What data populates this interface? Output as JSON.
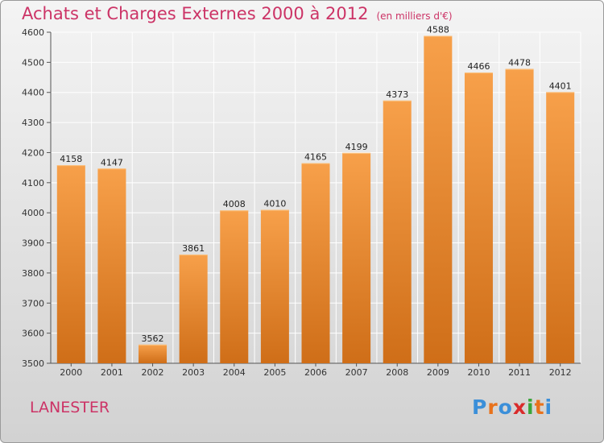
{
  "title": "Achats et Charges Externes 2000 à 2012",
  "unit": "(en milliers d'€)",
  "location": "LANESTER",
  "logo": {
    "text": "Proxiti",
    "colors": [
      "#3b8fd9",
      "#e8721c",
      "#3b8fd9",
      "#d92b2b",
      "#3aa53a",
      "#e8721c",
      "#3b8fd9"
    ]
  },
  "colors": {
    "bar": "#f0953a",
    "bar_dark": "#cf6e18",
    "title": "#cc3366",
    "grid": "#ffffff"
  },
  "chart_data": {
    "type": "bar",
    "title": "Achats et Charges Externes 2000 à 2012",
    "subtitle": "(en milliers d'€)",
    "categories": [
      "2000",
      "2001",
      "2002",
      "2003",
      "2004",
      "2005",
      "2006",
      "2007",
      "2008",
      "2009",
      "2010",
      "2011",
      "2012"
    ],
    "values": [
      4158,
      4147,
      3562,
      3861,
      4008,
      4010,
      4165,
      4199,
      4373,
      4588,
      4466,
      4478,
      4401
    ],
    "ylim": [
      3500,
      4600
    ],
    "yticks": [
      3500,
      3600,
      3700,
      3800,
      3900,
      4000,
      4100,
      4200,
      4300,
      4400,
      4500,
      4600
    ],
    "grid": true,
    "xlabel": "",
    "ylabel": ""
  }
}
